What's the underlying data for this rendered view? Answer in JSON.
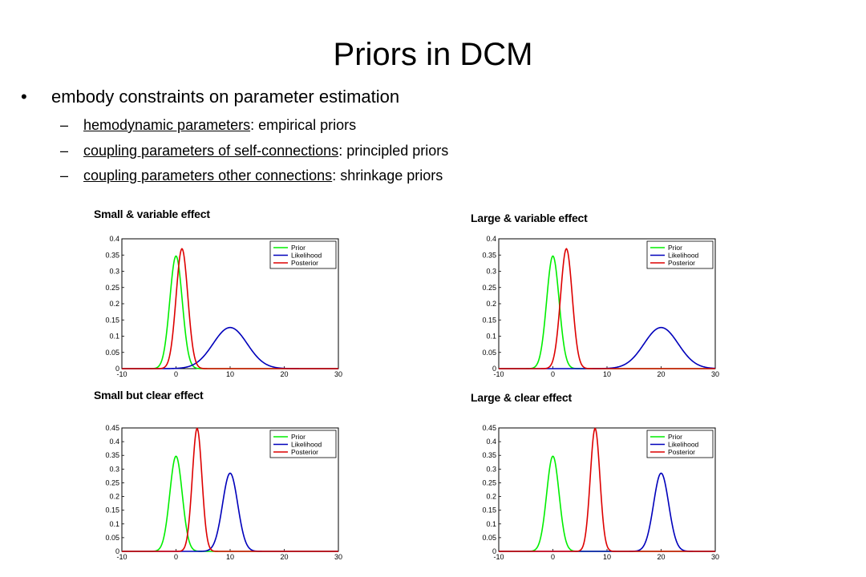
{
  "slide": {
    "title": "Priors in DCM",
    "bullet": "embody constraints on parameter estimation",
    "subitems": [
      {
        "dash": "–",
        "link": "hemodynamic parameters",
        "rest": ": empirical priors"
      },
      {
        "dash": "–",
        "link": "coupling parameters of self-connections",
        "rest": ": principled priors"
      },
      {
        "dash": "–",
        "link": "coupling parameters other connections",
        "rest": ": shrinkage priors"
      }
    ]
  },
  "colors": {
    "prior": "#00ee00",
    "likelihood": "#0000bb",
    "posterior": "#dd0000"
  },
  "chart_data": [
    {
      "type": "line",
      "title": "Small & variable effect",
      "xlim": [
        -10,
        30
      ],
      "ylim": [
        0,
        0.4
      ],
      "xticks": [
        -10,
        0,
        10,
        20,
        30
      ],
      "yticks": [
        0,
        0.05,
        0.1,
        0.15,
        0.2,
        0.25,
        0.3,
        0.35,
        0.4
      ],
      "legend": "top-right",
      "series": [
        {
          "name": "Prior",
          "color": "#00ee00",
          "mean": 0,
          "sd": 1.15
        },
        {
          "name": "Likelihood",
          "color": "#0000bb",
          "mean": 10,
          "sd": 3.15
        },
        {
          "name": "Posterior",
          "color": "#dd0000",
          "mean": 1.1,
          "sd": 1.08
        }
      ]
    },
    {
      "type": "line",
      "title": "Large & variable effect",
      "xlim": [
        -10,
        30
      ],
      "ylim": [
        0,
        0.4
      ],
      "xticks": [
        -10,
        0,
        10,
        20,
        30
      ],
      "yticks": [
        0,
        0.05,
        0.1,
        0.15,
        0.2,
        0.25,
        0.3,
        0.35,
        0.4
      ],
      "legend": "top-right",
      "series": [
        {
          "name": "Prior",
          "color": "#00ee00",
          "mean": 0,
          "sd": 1.15
        },
        {
          "name": "Likelihood",
          "color": "#0000bb",
          "mean": 20,
          "sd": 3.15
        },
        {
          "name": "Posterior",
          "color": "#dd0000",
          "mean": 2.5,
          "sd": 1.08
        }
      ]
    },
    {
      "type": "line",
      "title": "Small but clear effect",
      "xlim": [
        -10,
        30
      ],
      "ylim": [
        0,
        0.45
      ],
      "xticks": [
        -10,
        0,
        10,
        20,
        30
      ],
      "yticks": [
        0,
        0.05,
        0.1,
        0.15,
        0.2,
        0.25,
        0.3,
        0.35,
        0.4,
        0.45
      ],
      "legend": "top-right",
      "series": [
        {
          "name": "Prior",
          "color": "#00ee00",
          "mean": 0,
          "sd": 1.15
        },
        {
          "name": "Likelihood",
          "color": "#0000bb",
          "mean": 10,
          "sd": 1.4
        },
        {
          "name": "Posterior",
          "color": "#dd0000",
          "mean": 3.9,
          "sd": 0.89
        }
      ]
    },
    {
      "type": "line",
      "title": "Large & clear effect",
      "xlim": [
        -10,
        30
      ],
      "ylim": [
        0,
        0.45
      ],
      "xticks": [
        -10,
        0,
        10,
        20,
        30
      ],
      "yticks": [
        0,
        0.05,
        0.1,
        0.15,
        0.2,
        0.25,
        0.3,
        0.35,
        0.4,
        0.45
      ],
      "legend": "top-right",
      "series": [
        {
          "name": "Prior",
          "color": "#00ee00",
          "mean": 0,
          "sd": 1.15
        },
        {
          "name": "Likelihood",
          "color": "#0000bb",
          "mean": 20,
          "sd": 1.4
        },
        {
          "name": "Posterior",
          "color": "#dd0000",
          "mean": 7.8,
          "sd": 0.89
        }
      ]
    }
  ]
}
